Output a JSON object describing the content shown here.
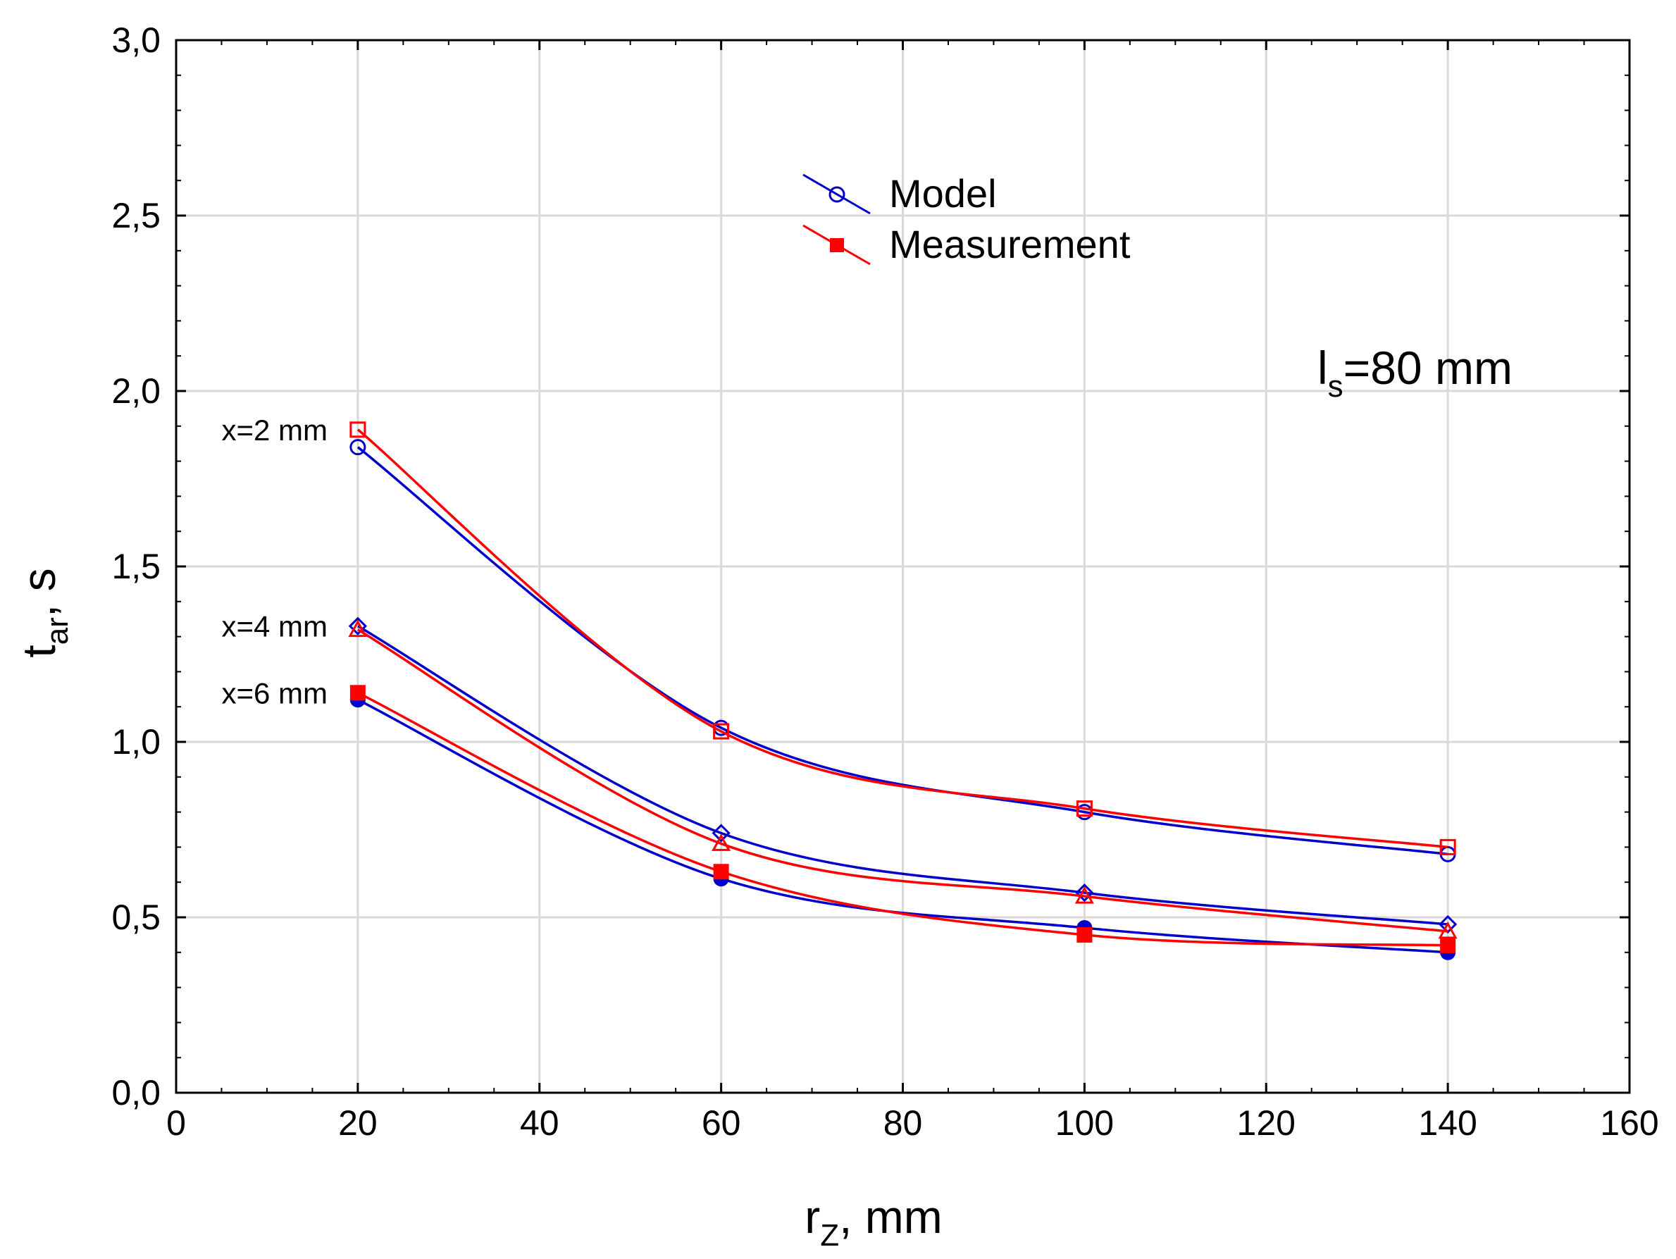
{
  "chart_data": {
    "type": "line",
    "title": "",
    "xlabel": {
      "main": "r",
      "sub": "Z",
      "suffix": ", mm"
    },
    "ylabel": {
      "main": "t",
      "sub": "ar",
      "suffix": ", s"
    },
    "xlim": [
      0,
      160
    ],
    "ylim": [
      0,
      3.0
    ],
    "x_ticks": [
      0,
      20,
      40,
      60,
      80,
      100,
      120,
      140,
      160
    ],
    "y_ticks": [
      0,
      0.5,
      1.0,
      1.5,
      2.0,
      2.5,
      3.0
    ],
    "x_tick_labels": [
      "0",
      "20",
      "40",
      "60",
      "80",
      "100",
      "120",
      "140",
      "160"
    ],
    "y_tick_labels": [
      "0,0",
      "0,5",
      "1,0",
      "1,5",
      "2,0",
      "2,5",
      "3,0"
    ],
    "grid": true,
    "legend": {
      "placement": "top-center",
      "entries": [
        {
          "label": "Model",
          "color": "#0000cc",
          "marker": "circle-open"
        },
        {
          "label": "Measurement",
          "color": "#ff0000",
          "marker": "square-filled"
        }
      ]
    },
    "annotation": {
      "main": "l",
      "sub": "s",
      "suffix": "=80 mm"
    },
    "x": [
      20,
      60,
      100,
      140
    ],
    "series": [
      {
        "name": "Model x=2 mm",
        "group": "x=2 mm",
        "kind": "Model",
        "color": "#0000cc",
        "marker": "circle-open",
        "values": [
          1.84,
          1.04,
          0.8,
          0.68
        ]
      },
      {
        "name": "Measurement x=2 mm",
        "group": "x=2 mm",
        "kind": "Measurement",
        "color": "#ff0000",
        "marker": "square-open",
        "values": [
          1.89,
          1.03,
          0.81,
          0.7
        ]
      },
      {
        "name": "Model x=4 mm",
        "group": "x=4 mm",
        "kind": "Model",
        "color": "#0000cc",
        "marker": "diamond-open",
        "values": [
          1.33,
          0.74,
          0.57,
          0.48
        ]
      },
      {
        "name": "Measurement x=4 mm",
        "group": "x=4 mm",
        "kind": "Measurement",
        "color": "#ff0000",
        "marker": "triangle-open",
        "values": [
          1.32,
          0.71,
          0.56,
          0.46
        ]
      },
      {
        "name": "Model x=6 mm",
        "group": "x=6 mm",
        "kind": "Model",
        "color": "#0000cc",
        "marker": "circle-filled",
        "values": [
          1.12,
          0.61,
          0.47,
          0.4
        ]
      },
      {
        "name": "Measurement x=6 mm",
        "group": "x=6 mm",
        "kind": "Measurement",
        "color": "#ff0000",
        "marker": "square-filled",
        "values": [
          1.14,
          0.63,
          0.45,
          0.42
        ]
      }
    ],
    "group_labels": [
      {
        "text": "x=2 mm",
        "at_value": 1.89
      },
      {
        "text": "x=4 mm",
        "at_value": 1.33
      },
      {
        "text": "x=6 mm",
        "at_value": 1.14
      }
    ]
  }
}
